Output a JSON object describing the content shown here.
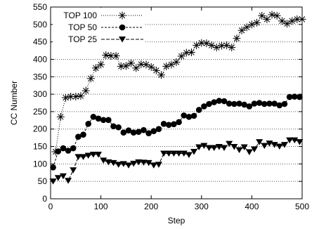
{
  "chart_data": {
    "type": "line",
    "title": "",
    "xlabel": "Step",
    "ylabel": "CC Number",
    "xlim": [
      0,
      500
    ],
    "ylim": [
      0,
      550
    ],
    "xticks": [
      0,
      100,
      200,
      300,
      400,
      500
    ],
    "yticks": [
      0,
      50,
      100,
      150,
      200,
      250,
      300,
      350,
      400,
      450,
      500,
      550
    ],
    "grid": "horizontal-dotted",
    "legend_position": "top-left",
    "series": [
      {
        "name": "TOP 100",
        "marker": "asterisk",
        "x": [
          10,
          20,
          30,
          40,
          50,
          60,
          70,
          80,
          90,
          100,
          110,
          120,
          130,
          140,
          150,
          160,
          170,
          180,
          190,
          200,
          210,
          220,
          230,
          240,
          250,
          260,
          270,
          280,
          290,
          300,
          310,
          320,
          330,
          340,
          350,
          360,
          370,
          380,
          390,
          400,
          410,
          420,
          430,
          440,
          450,
          460,
          470,
          480,
          490,
          500
        ],
        "y": [
          135,
          235,
          290,
          293,
          293,
          295,
          310,
          345,
          375,
          385,
          412,
          410,
          410,
          380,
          381,
          389,
          375,
          386,
          385,
          378,
          368,
          355,
          380,
          385,
          392,
          409,
          419,
          420,
          440,
          447,
          446,
          440,
          434,
          439,
          440,
          434,
          460,
          483,
          492,
          500,
          505,
          525,
          515,
          528,
          525,
          510,
          502,
          510,
          515,
          515
        ]
      },
      {
        "name": "TOP 50",
        "marker": "circle",
        "x": [
          5,
          15,
          25,
          35,
          45,
          55,
          65,
          75,
          85,
          95,
          105,
          115,
          125,
          135,
          145,
          155,
          165,
          175,
          185,
          195,
          205,
          215,
          225,
          235,
          245,
          255,
          265,
          275,
          285,
          295,
          305,
          315,
          325,
          335,
          345,
          355,
          365,
          375,
          385,
          395,
          405,
          415,
          425,
          435,
          445,
          455,
          465,
          475,
          485,
          495
        ],
        "y": [
          90,
          136,
          145,
          138,
          145,
          178,
          184,
          215,
          235,
          230,
          226,
          226,
          208,
          205,
          190,
          196,
          190,
          192,
          197,
          188,
          194,
          200,
          215,
          212,
          214,
          220,
          239,
          235,
          238,
          255,
          265,
          272,
          277,
          281,
          280,
          273,
          272,
          273,
          270,
          265,
          273,
          275,
          272,
          273,
          273,
          268,
          272,
          292,
          293,
          292
        ]
      },
      {
        "name": "TOP 25",
        "marker": "triangle-down",
        "x": [
          5,
          15,
          25,
          35,
          45,
          55,
          65,
          75,
          85,
          95,
          105,
          115,
          125,
          135,
          145,
          155,
          165,
          175,
          185,
          195,
          205,
          215,
          225,
          235,
          245,
          255,
          265,
          275,
          285,
          295,
          305,
          315,
          325,
          335,
          345,
          355,
          365,
          375,
          385,
          395,
          405,
          415,
          425,
          435,
          445,
          455,
          465,
          475,
          485,
          495
        ],
        "y": [
          50,
          60,
          65,
          52,
          82,
          120,
          120,
          124,
          127,
          127,
          110,
          105,
          103,
          98,
          100,
          96,
          101,
          105,
          104,
          103,
          96,
          98,
          130,
          130,
          130,
          130,
          130,
          126,
          135,
          148,
          152,
          146,
          146,
          149,
          146,
          158,
          149,
          140,
          148,
          134,
          142,
          163,
          152,
          159,
          155,
          150,
          155,
          168,
          168,
          163
        ]
      }
    ]
  }
}
